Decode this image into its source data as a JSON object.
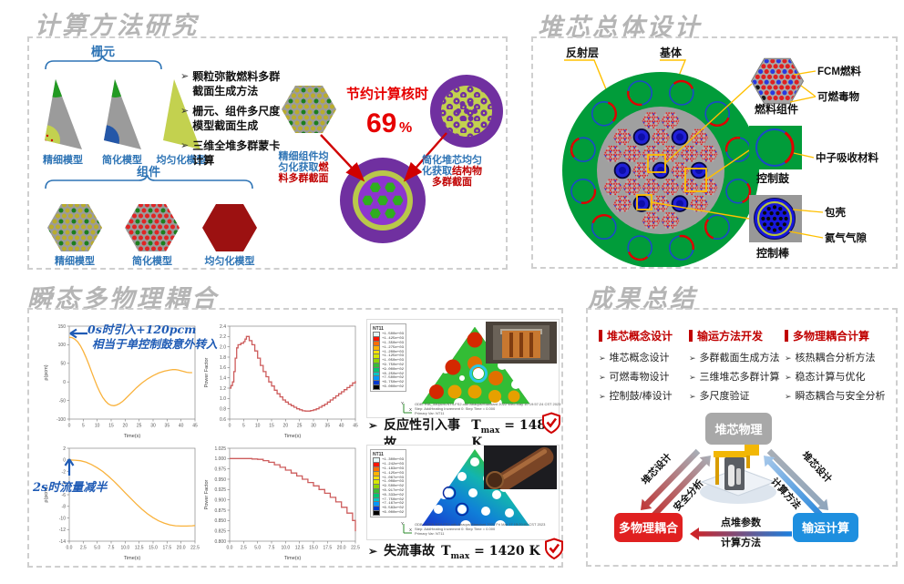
{
  "colors": {
    "accent_red": "#c00000",
    "bright_red": "#e60000",
    "blue": "#2e74b5",
    "yellow": "#ffc000",
    "core_green": "#019c3a",
    "purple": "#7030a0",
    "gray_box": "#a8a8a8",
    "blue_box": "#1e8fdf",
    "red_box": "#e02020"
  },
  "titles": {
    "methods": "计算方法研究",
    "core": "堆芯总体设计",
    "transient": "瞬态多物理耦合",
    "summary": "成果总结"
  },
  "methods": {
    "marker": "➢",
    "lattice_label": "栅元",
    "lattice_models": [
      "精细模型",
      "简化模型",
      "均匀化模型"
    ],
    "assembly_label": "组件",
    "assembly_models": [
      "精细模型",
      "简化模型",
      "均匀化模型"
    ],
    "bullets": [
      "颗粒弥散燃料多群截面生成方法",
      "栅元、组件多尺度模型截面生成",
      "三维全堆多群蒙卡计算"
    ],
    "saving_caption": "节约计算核时",
    "saving_value": "69",
    "saving_unit": "%",
    "left_note_blue": "精细组件均匀化获取",
    "left_note_red": "燃料多群截面",
    "right_note_blue": "简化堆芯均匀化获取",
    "right_note_red": "结构物多群截面"
  },
  "core": {
    "reflector": "反射层",
    "matrix": "基体",
    "fuel_assembly": "燃料组件",
    "fcm_fuel": "FCM燃料",
    "burnable_poison": "可燃毒物",
    "control_drum": "控制鼓",
    "absorber": "中子吸收材料",
    "control_rod": "控制棒",
    "cladding": "包壳",
    "helium_gap": "氦气气隙"
  },
  "transient": {
    "marker": "➢",
    "ann1_line1": "0s时引入+120pcm",
    "ann1_line2": "相当于单控制鼓意外转入",
    "ann2": "2s时流量减半",
    "axis_x": "X",
    "axis_y": "Y",
    "sim1": {
      "legend_title": "NT11",
      "legend_values": [
        "+1.500e+03",
        "+1.425e+03",
        "+1.350e+03",
        "+1.275e+03",
        "+1.200e+03",
        "+1.125e+03",
        "+1.050e+03",
        "+9.750e+02",
        "+9.000e+02",
        "+8.250e+02",
        "+7.500e+02",
        "+6.750e+02",
        "+6.000e+02"
      ],
      "odb": "ODB: RIA_330pcm-NT4-FS2.odb   Abaqus/Standard 2022   Wed May 10 19:57:24 CST 2023",
      "step": "Step: AddHeating   Increment 0: Step Time = 0.000",
      "var": "Primary Var: NT11"
    },
    "sim2": {
      "legend_title": "NT11",
      "legend_values": [
        "+1.300e+03",
        "+1.242e+03",
        "+1.183e+03",
        "+1.125e+03",
        "+1.067e+03",
        "+1.008e+03",
        "+9.500e+02",
        "+8.917e+02",
        "+8.333e+02",
        "+7.750e+02",
        "+7.167e+02",
        "+6.583e+02",
        "+6.000e+02"
      ],
      "odb": "ODB: LOFA-NT4-FS2.odb   Abaqus/Standard 2022   Fri Mar 17 15:20:02 CST 2023",
      "step": "Step: AddHeating   Increment 0: Step Time = 0.000",
      "var": "Primary Var: NT11"
    },
    "result1_label": "反应性引入事故",
    "result1_t": "T",
    "result1_sub": "max",
    "result1_value": "= 1484 K",
    "result2_label": "失流事故",
    "result2_t": "T",
    "result2_sub": "max",
    "result2_value": "= 1420 K"
  },
  "summary": {
    "marker": "➢",
    "columns": [
      {
        "header": "堆芯概念设计",
        "items": [
          "堆芯概念设计",
          "可燃毒物设计",
          "控制鼓/棒设计"
        ]
      },
      {
        "header": "输运方法开发",
        "items": [
          "多群截面生成方法",
          "三维堆芯多群计算",
          "多尺度验证"
        ]
      },
      {
        "header": "多物理耦合计算",
        "items": [
          "核热耦合分析方法",
          "稳态计算与优化",
          "瞬态耦合与安全分析"
        ]
      }
    ],
    "diagram": {
      "top_box": "堆芯物理",
      "left_box": "多物理耦合",
      "right_box": "输运计算",
      "left_arrow_down": "堆芯设计",
      "left_arrow_up": "安全分析",
      "right_arrow_down": "堆芯设计",
      "right_arrow_up": "计算方法",
      "bottom_arrow_line1": "点堆参数",
      "bottom_arrow_line2": "计算方法"
    }
  },
  "chart_data": [
    {
      "id": "c1",
      "type": "line",
      "color": "#f9b23c",
      "xlabel": "Time(s)",
      "ylabel": "ρ(pcm)",
      "xlim": [
        0,
        45
      ],
      "xstep": 5,
      "xdec": 0,
      "ylim": [
        -100,
        150
      ],
      "ystep": 50,
      "ydec": 0,
      "step": false,
      "annotation": "0s时引入+120pcm 相当于单控制鼓意外转入",
      "points": [
        [
          0,
          120
        ],
        [
          1,
          119
        ],
        [
          2,
          115
        ],
        [
          3,
          108
        ],
        [
          4,
          97
        ],
        [
          5,
          83
        ],
        [
          6,
          66
        ],
        [
          7,
          47
        ],
        [
          8,
          27
        ],
        [
          9,
          7
        ],
        [
          10,
          -12
        ],
        [
          11,
          -28
        ],
        [
          12,
          -42
        ],
        [
          13,
          -52
        ],
        [
          14,
          -59
        ],
        [
          15,
          -63
        ],
        [
          16,
          -64
        ],
        [
          17,
          -62
        ],
        [
          18,
          -58
        ],
        [
          19,
          -53
        ],
        [
          20,
          -46
        ],
        [
          22,
          -31
        ],
        [
          24,
          -16
        ],
        [
          26,
          -3
        ],
        [
          28,
          8
        ],
        [
          30,
          17
        ],
        [
          32,
          24
        ],
        [
          34,
          29
        ],
        [
          36,
          32
        ],
        [
          37,
          33
        ],
        [
          38,
          33
        ],
        [
          39,
          32
        ],
        [
          40,
          30
        ],
        [
          41,
          28
        ],
        [
          42,
          26
        ],
        [
          43,
          25
        ],
        [
          44,
          25
        ]
      ]
    },
    {
      "id": "c2",
      "type": "line",
      "color": "#cd5c5c",
      "xlabel": "Time(s)",
      "ylabel": "Power Factor",
      "xlim": [
        0,
        45
      ],
      "xstep": 5,
      "xdec": 0,
      "ylim": [
        0.6,
        2.4
      ],
      "ystep": 0.2,
      "ydec": 1,
      "step": true,
      "annotation": "",
      "points": [
        [
          0,
          1.2
        ],
        [
          0.5,
          1.25
        ],
        [
          1,
          1.32
        ],
        [
          1.5,
          1.52
        ],
        [
          2,
          1.78
        ],
        [
          2.5,
          1.98
        ],
        [
          3,
          2.04
        ],
        [
          4,
          2.07
        ],
        [
          5,
          2.1
        ],
        [
          5.5,
          2.15
        ],
        [
          6,
          2.2
        ],
        [
          7,
          2.12
        ],
        [
          8,
          2.04
        ],
        [
          9,
          1.92
        ],
        [
          10,
          1.78
        ],
        [
          11,
          1.64
        ],
        [
          12,
          1.52
        ],
        [
          13,
          1.42
        ],
        [
          14,
          1.32
        ],
        [
          15,
          1.24
        ],
        [
          16,
          1.16
        ],
        [
          17,
          1.09
        ],
        [
          18,
          1.03
        ],
        [
          19,
          0.97
        ],
        [
          20,
          0.93
        ],
        [
          21,
          0.89
        ],
        [
          22,
          0.86
        ],
        [
          23,
          0.83
        ],
        [
          24,
          0.8
        ],
        [
          25,
          0.78
        ],
        [
          26,
          0.76
        ],
        [
          27,
          0.755
        ],
        [
          28,
          0.755
        ],
        [
          29,
          0.765
        ],
        [
          30,
          0.78
        ],
        [
          31,
          0.8
        ],
        [
          32,
          0.83
        ],
        [
          33,
          0.86
        ],
        [
          34,
          0.89
        ],
        [
          35,
          0.93
        ],
        [
          36,
          0.97
        ],
        [
          37,
          1.01
        ],
        [
          38,
          1.05
        ],
        [
          39,
          1.09
        ],
        [
          40,
          1.13
        ],
        [
          41,
          1.17
        ],
        [
          42,
          1.21
        ],
        [
          43,
          1.25
        ],
        [
          44,
          1.3
        ],
        [
          45,
          1.34
        ]
      ]
    },
    {
      "id": "c3",
      "type": "line",
      "color": "#f9b23c",
      "xlabel": "Time(s)",
      "ylabel": "ρ(pcm)",
      "xlim": [
        0,
        22.5
      ],
      "xstep": 2.5,
      "xdec": 1,
      "ylim": [
        -14,
        2
      ],
      "ystep": 2,
      "ydec": 0,
      "step": false,
      "annotation": "2s时流量减半",
      "points": [
        [
          0,
          0
        ],
        [
          1,
          -0.05
        ],
        [
          2,
          -0.15
        ],
        [
          3,
          -0.4
        ],
        [
          4,
          -0.8
        ],
        [
          5,
          -1.35
        ],
        [
          6,
          -2.0
        ],
        [
          7,
          -2.8
        ],
        [
          8,
          -3.7
        ],
        [
          9,
          -4.65
        ],
        [
          10,
          -5.65
        ],
        [
          11,
          -6.65
        ],
        [
          12,
          -7.6
        ],
        [
          13,
          -8.5
        ],
        [
          14,
          -9.3
        ],
        [
          15,
          -9.95
        ],
        [
          16,
          -10.5
        ],
        [
          17,
          -10.9
        ],
        [
          18,
          -11.2
        ],
        [
          19,
          -11.35
        ],
        [
          20,
          -11.4
        ],
        [
          21,
          -11.4
        ],
        [
          22,
          -11.35
        ],
        [
          22.5,
          -11.3
        ]
      ]
    },
    {
      "id": "c4",
      "type": "line",
      "color": "#cd5c5c",
      "xlabel": "Time(s)",
      "ylabel": "Power Factor",
      "xlim": [
        0,
        22.5
      ],
      "xstep": 2.5,
      "xdec": 1,
      "ylim": [
        0.8,
        1.025
      ],
      "ystep": 0.025,
      "ydec": 3,
      "step": true,
      "annotation": "",
      "points": [
        [
          0,
          1.0
        ],
        [
          3,
          1.0
        ],
        [
          4,
          0.999
        ],
        [
          5,
          0.998
        ],
        [
          6,
          0.995
        ],
        [
          7,
          0.991
        ],
        [
          8,
          0.985
        ],
        [
          9,
          0.979
        ],
        [
          10,
          0.972
        ],
        [
          11,
          0.965
        ],
        [
          12,
          0.958
        ],
        [
          13,
          0.95
        ],
        [
          14,
          0.942
        ],
        [
          15,
          0.934
        ],
        [
          16,
          0.925
        ],
        [
          17,
          0.916
        ],
        [
          18,
          0.906
        ],
        [
          19,
          0.895
        ],
        [
          20,
          0.882
        ],
        [
          21,
          0.868
        ],
        [
          22,
          0.85
        ],
        [
          22.5,
          0.824
        ]
      ]
    }
  ]
}
